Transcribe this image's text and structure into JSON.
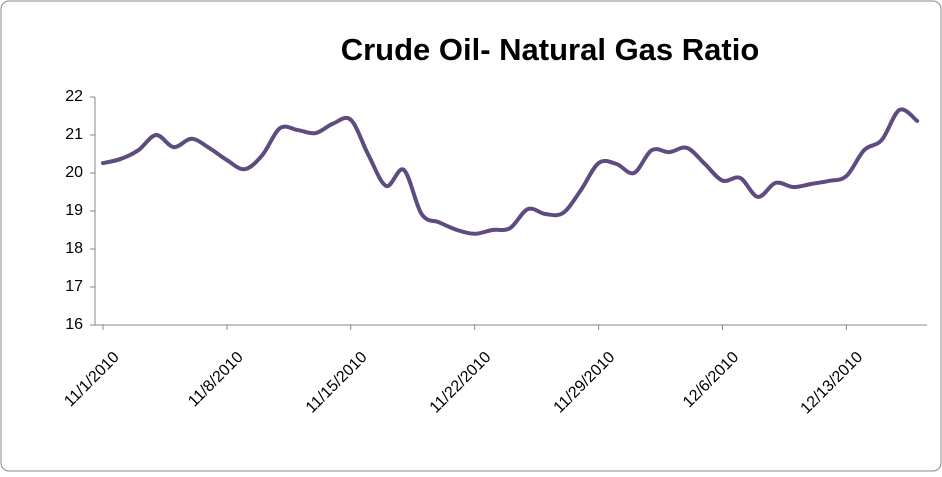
{
  "chart_data": {
    "type": "line",
    "title": "Crude Oil- Natural Gas Ratio",
    "categories": [
      "11/1/2010",
      null,
      null,
      null,
      null,
      null,
      null,
      "11/8/2010",
      null,
      null,
      null,
      null,
      null,
      null,
      "11/15/2010",
      null,
      null,
      null,
      null,
      null,
      null,
      "11/22/2010",
      null,
      null,
      null,
      null,
      null,
      null,
      "11/29/2010",
      null,
      null,
      null,
      null,
      null,
      null,
      "12/6/2010",
      null,
      null,
      null,
      null,
      null,
      null,
      "12/13/2010",
      null,
      null,
      null,
      null
    ],
    "series": [
      {
        "name": "Ratio",
        "color": "#5e4b80",
        "values": [
          20.26,
          20.37,
          20.6,
          21.0,
          20.68,
          20.9,
          20.66,
          20.34,
          20.1,
          20.47,
          21.18,
          21.13,
          21.05,
          21.3,
          21.4,
          20.47,
          19.66,
          20.08,
          18.92,
          18.7,
          18.5,
          18.4,
          18.5,
          18.55,
          19.05,
          18.92,
          18.95,
          19.55,
          20.26,
          20.24,
          20.0,
          20.6,
          20.55,
          20.66,
          20.24,
          19.8,
          19.87,
          19.37,
          19.74,
          19.63,
          19.71,
          19.79,
          19.92,
          20.6,
          20.87,
          21.66,
          21.37
        ]
      }
    ],
    "ylim": [
      16,
      22
    ],
    "yticks": [
      16,
      17,
      18,
      19,
      20,
      21,
      22
    ],
    "grid": false,
    "legend": false
  }
}
